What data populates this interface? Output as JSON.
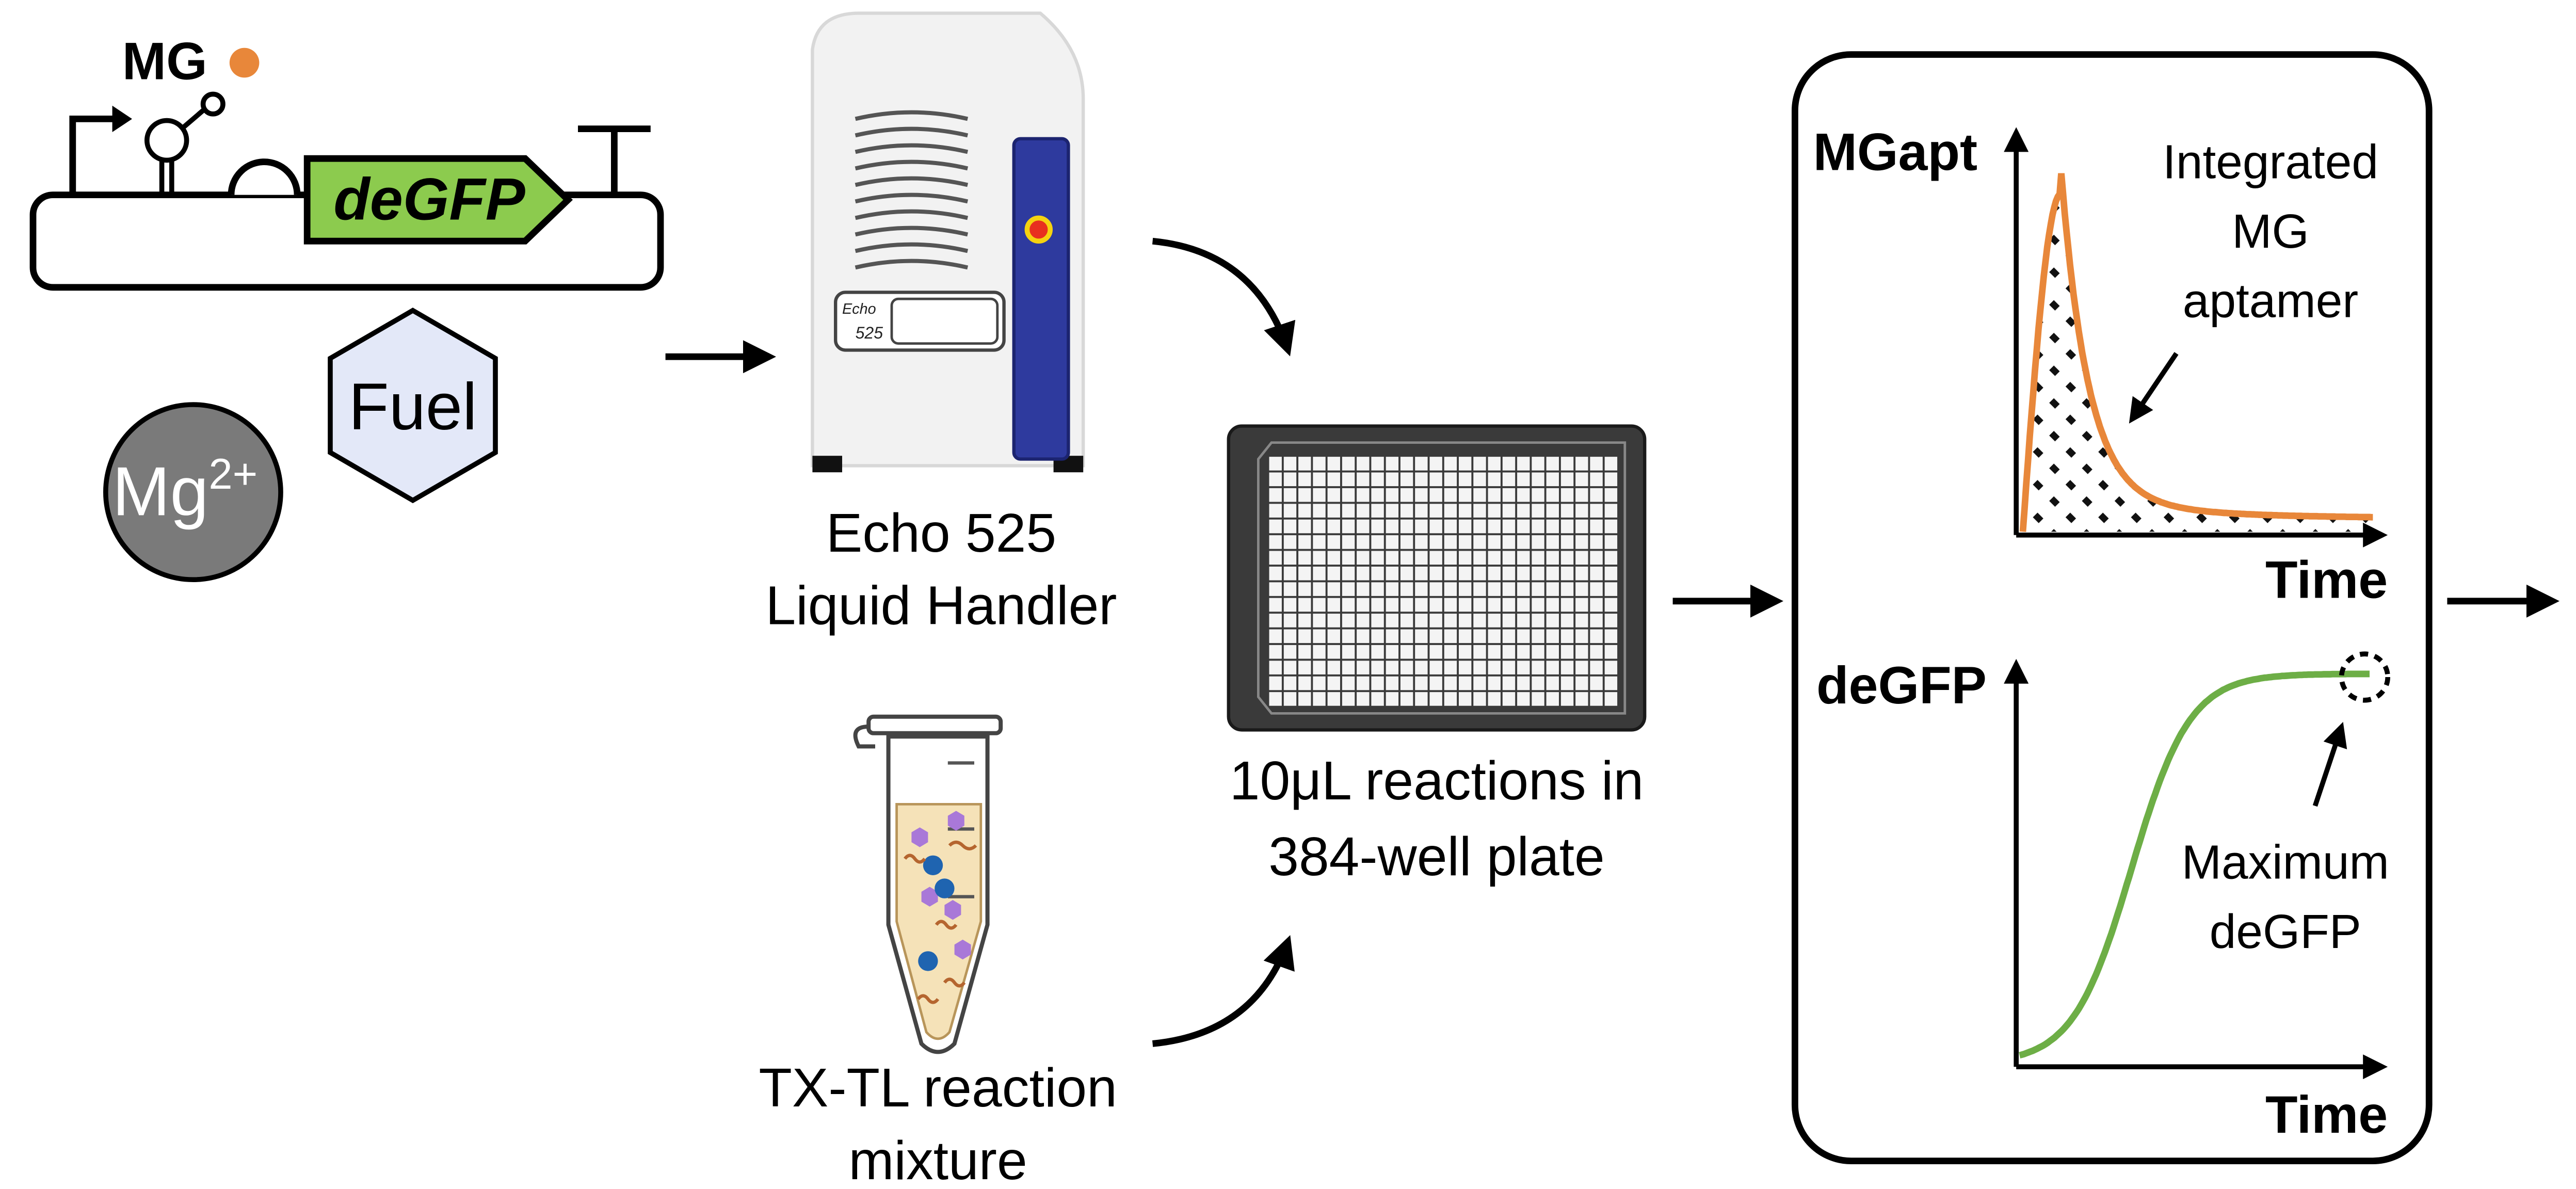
{
  "plasmid": {
    "ligand_label": "MG",
    "gene_label": "deGFP"
  },
  "reagents": {
    "fuel_label": "Fuel",
    "mg_base": "Mg",
    "mg_sup": "2+"
  },
  "instrument": {
    "model_line1": "Echo",
    "model_line2": "525",
    "label_line1": "Echo 525",
    "label_line2": "Liquid Handler"
  },
  "tube": {
    "label_line1": "TX-TL reaction",
    "label_line2": "mixture"
  },
  "plate": {
    "label_line1": "10μL reactions in",
    "label_line2": "384-well plate",
    "rows": 16,
    "cols": 24
  },
  "graph_top": {
    "ylabel": "MGapt",
    "xlabel": "Time",
    "annotation_lines": [
      "Integrated",
      "MG",
      "aptamer"
    ],
    "color": "#E8873A"
  },
  "graph_bottom": {
    "ylabel": "deGFP",
    "xlabel": "Time",
    "annotation_lines": [
      "Maximum",
      "deGFP"
    ],
    "color": "#6DAE46"
  },
  "colors": {
    "gfp_fill": "#8CCB4E",
    "orange": "#E8873A",
    "fuel_fill": "#E3E8F8",
    "mg_fill": "#7A7A7A",
    "echo_blue": "#2E3A9E",
    "tube_fill": "#F5E2B8",
    "dot_blue": "#1F64B0",
    "hex_purple": "#A978D8",
    "squiggle": "#B5652F"
  }
}
